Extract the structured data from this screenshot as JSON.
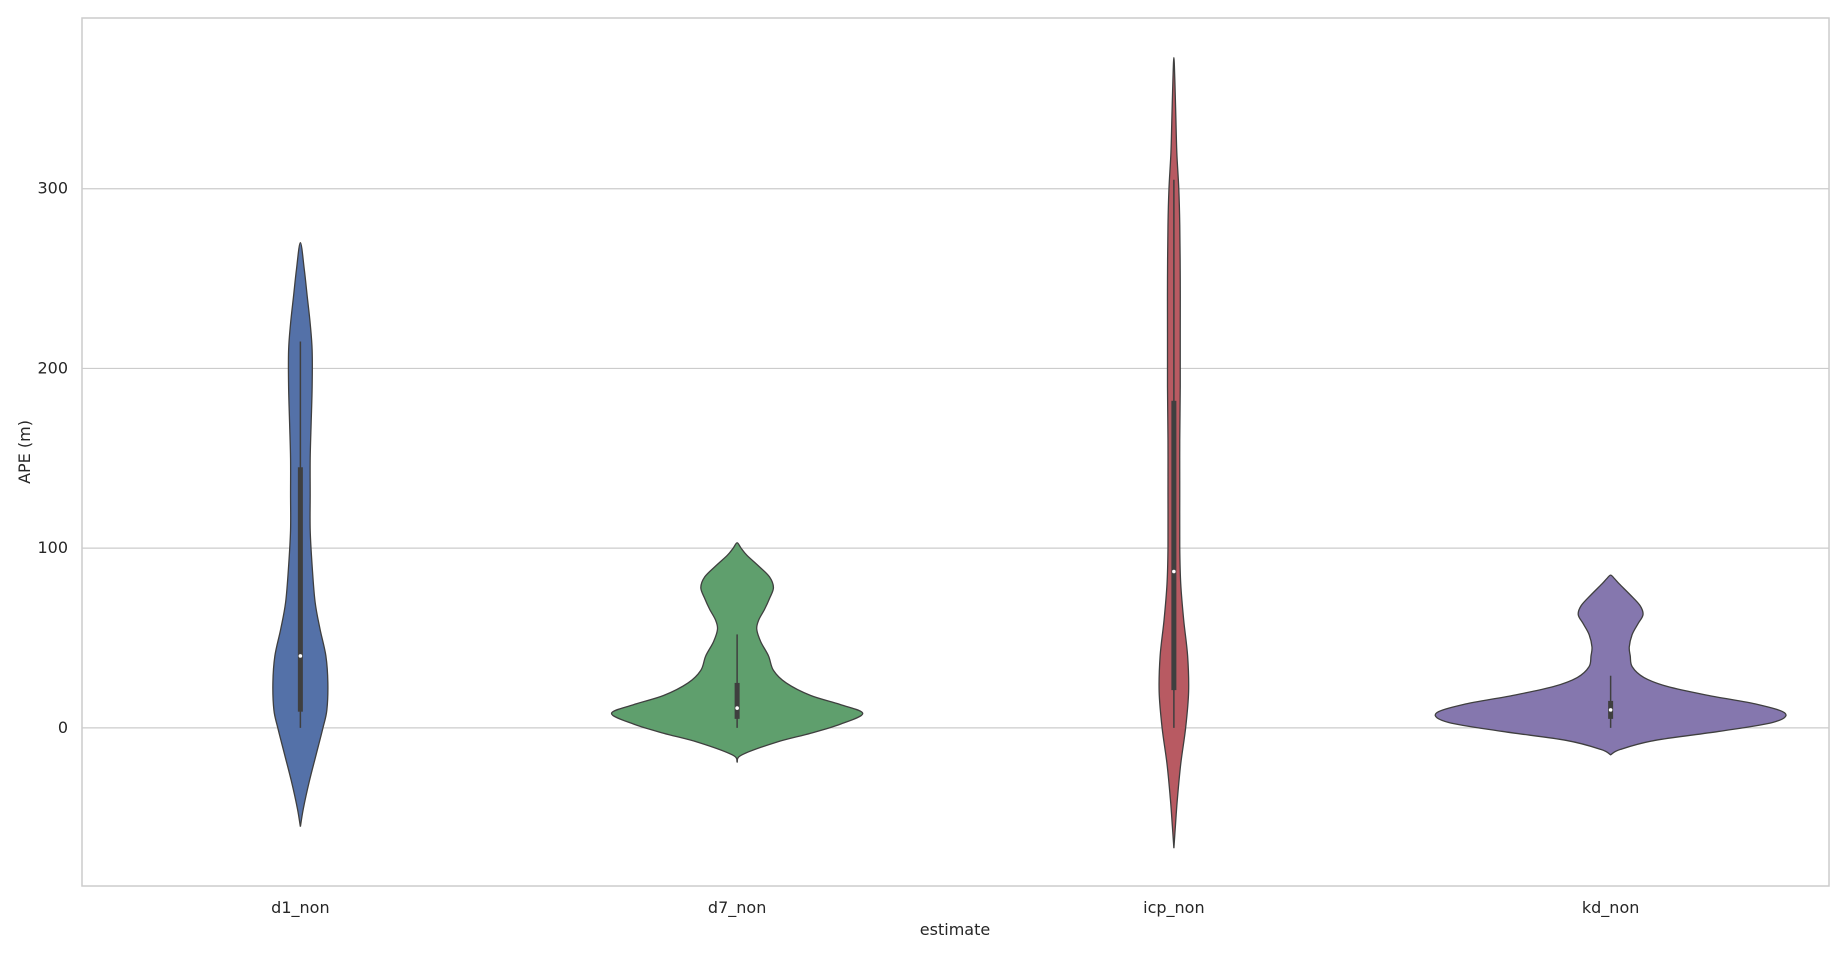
{
  "chart_data": {
    "type": "violin",
    "title": "",
    "xlabel": "estimate",
    "ylabel": "APE (m)",
    "ylim": [
      -88,
      395
    ],
    "yticks": [
      0,
      100,
      200,
      300
    ],
    "grid": "horizontal",
    "legend": "none",
    "categories": [
      "d1_non",
      "d7_non",
      "icp_non",
      "kd_non"
    ],
    "series": [
      {
        "category": "d1_non",
        "color": "#5471a8",
        "stats": {
          "min": 0,
          "q1": 9,
          "median": 40,
          "q3": 145,
          "max": 215
        },
        "density": [
          [
            -55,
            0
          ],
          [
            -45,
            3
          ],
          [
            -30,
            9
          ],
          [
            -15,
            16
          ],
          [
            0,
            23
          ],
          [
            10,
            27
          ],
          [
            25,
            28
          ],
          [
            40,
            26
          ],
          [
            55,
            20
          ],
          [
            70,
            15
          ],
          [
            90,
            12
          ],
          [
            110,
            10
          ],
          [
            130,
            10
          ],
          [
            150,
            10
          ],
          [
            170,
            11
          ],
          [
            190,
            12
          ],
          [
            210,
            12
          ],
          [
            225,
            10
          ],
          [
            240,
            7
          ],
          [
            255,
            4
          ],
          [
            270,
            0
          ]
        ]
      },
      {
        "category": "d7_non",
        "color": "#5f9f6d",
        "stats": {
          "min": 0,
          "q1": 5,
          "median": 11,
          "q3": 25,
          "max": 52
        },
        "density": [
          [
            -19,
            0
          ],
          [
            -15,
            5
          ],
          [
            -8,
            40
          ],
          [
            -3,
            75
          ],
          [
            2,
            105
          ],
          [
            8,
            128
          ],
          [
            13,
            105
          ],
          [
            18,
            75
          ],
          [
            25,
            50
          ],
          [
            32,
            37
          ],
          [
            40,
            32
          ],
          [
            48,
            24
          ],
          [
            55,
            20
          ],
          [
            60,
            22
          ],
          [
            66,
            28
          ],
          [
            72,
            33
          ],
          [
            78,
            37
          ],
          [
            84,
            33
          ],
          [
            90,
            22
          ],
          [
            96,
            10
          ],
          [
            100,
            4
          ],
          [
            103,
            0
          ]
        ]
      },
      {
        "category": "icp_non",
        "color": "#b85a62",
        "stats": {
          "min": 0,
          "q1": 21,
          "median": 87,
          "q3": 182,
          "max": 305
        },
        "density": [
          [
            -67,
            0
          ],
          [
            -55,
            1.5
          ],
          [
            -40,
            3.5
          ],
          [
            -20,
            7
          ],
          [
            0,
            12
          ],
          [
            20,
            15
          ],
          [
            40,
            14
          ],
          [
            60,
            10
          ],
          [
            80,
            7
          ],
          [
            100,
            6
          ],
          [
            130,
            6
          ],
          [
            160,
            6
          ],
          [
            190,
            6.5
          ],
          [
            220,
            6.5
          ],
          [
            250,
            6.5
          ],
          [
            280,
            6
          ],
          [
            300,
            5
          ],
          [
            320,
            3
          ],
          [
            340,
            2
          ],
          [
            360,
            1
          ],
          [
            373,
            0
          ]
        ]
      },
      {
        "category": "kd_non",
        "color": "#8577ae",
        "stats": {
          "min": 0,
          "q1": 5,
          "median": 10,
          "q3": 15,
          "max": 29
        },
        "density": [
          [
            -15,
            0
          ],
          [
            -12,
            10
          ],
          [
            -7,
            45
          ],
          [
            -2,
            110
          ],
          [
            3,
            165
          ],
          [
            8,
            178
          ],
          [
            13,
            150
          ],
          [
            18,
            100
          ],
          [
            23,
            58
          ],
          [
            28,
            34
          ],
          [
            34,
            22
          ],
          [
            40,
            20
          ],
          [
            45,
            19
          ],
          [
            52,
            22
          ],
          [
            58,
            28
          ],
          [
            63,
            33
          ],
          [
            68,
            30
          ],
          [
            74,
            20
          ],
          [
            80,
            9
          ],
          [
            83,
            4
          ],
          [
            85,
            0
          ]
        ]
      }
    ]
  }
}
